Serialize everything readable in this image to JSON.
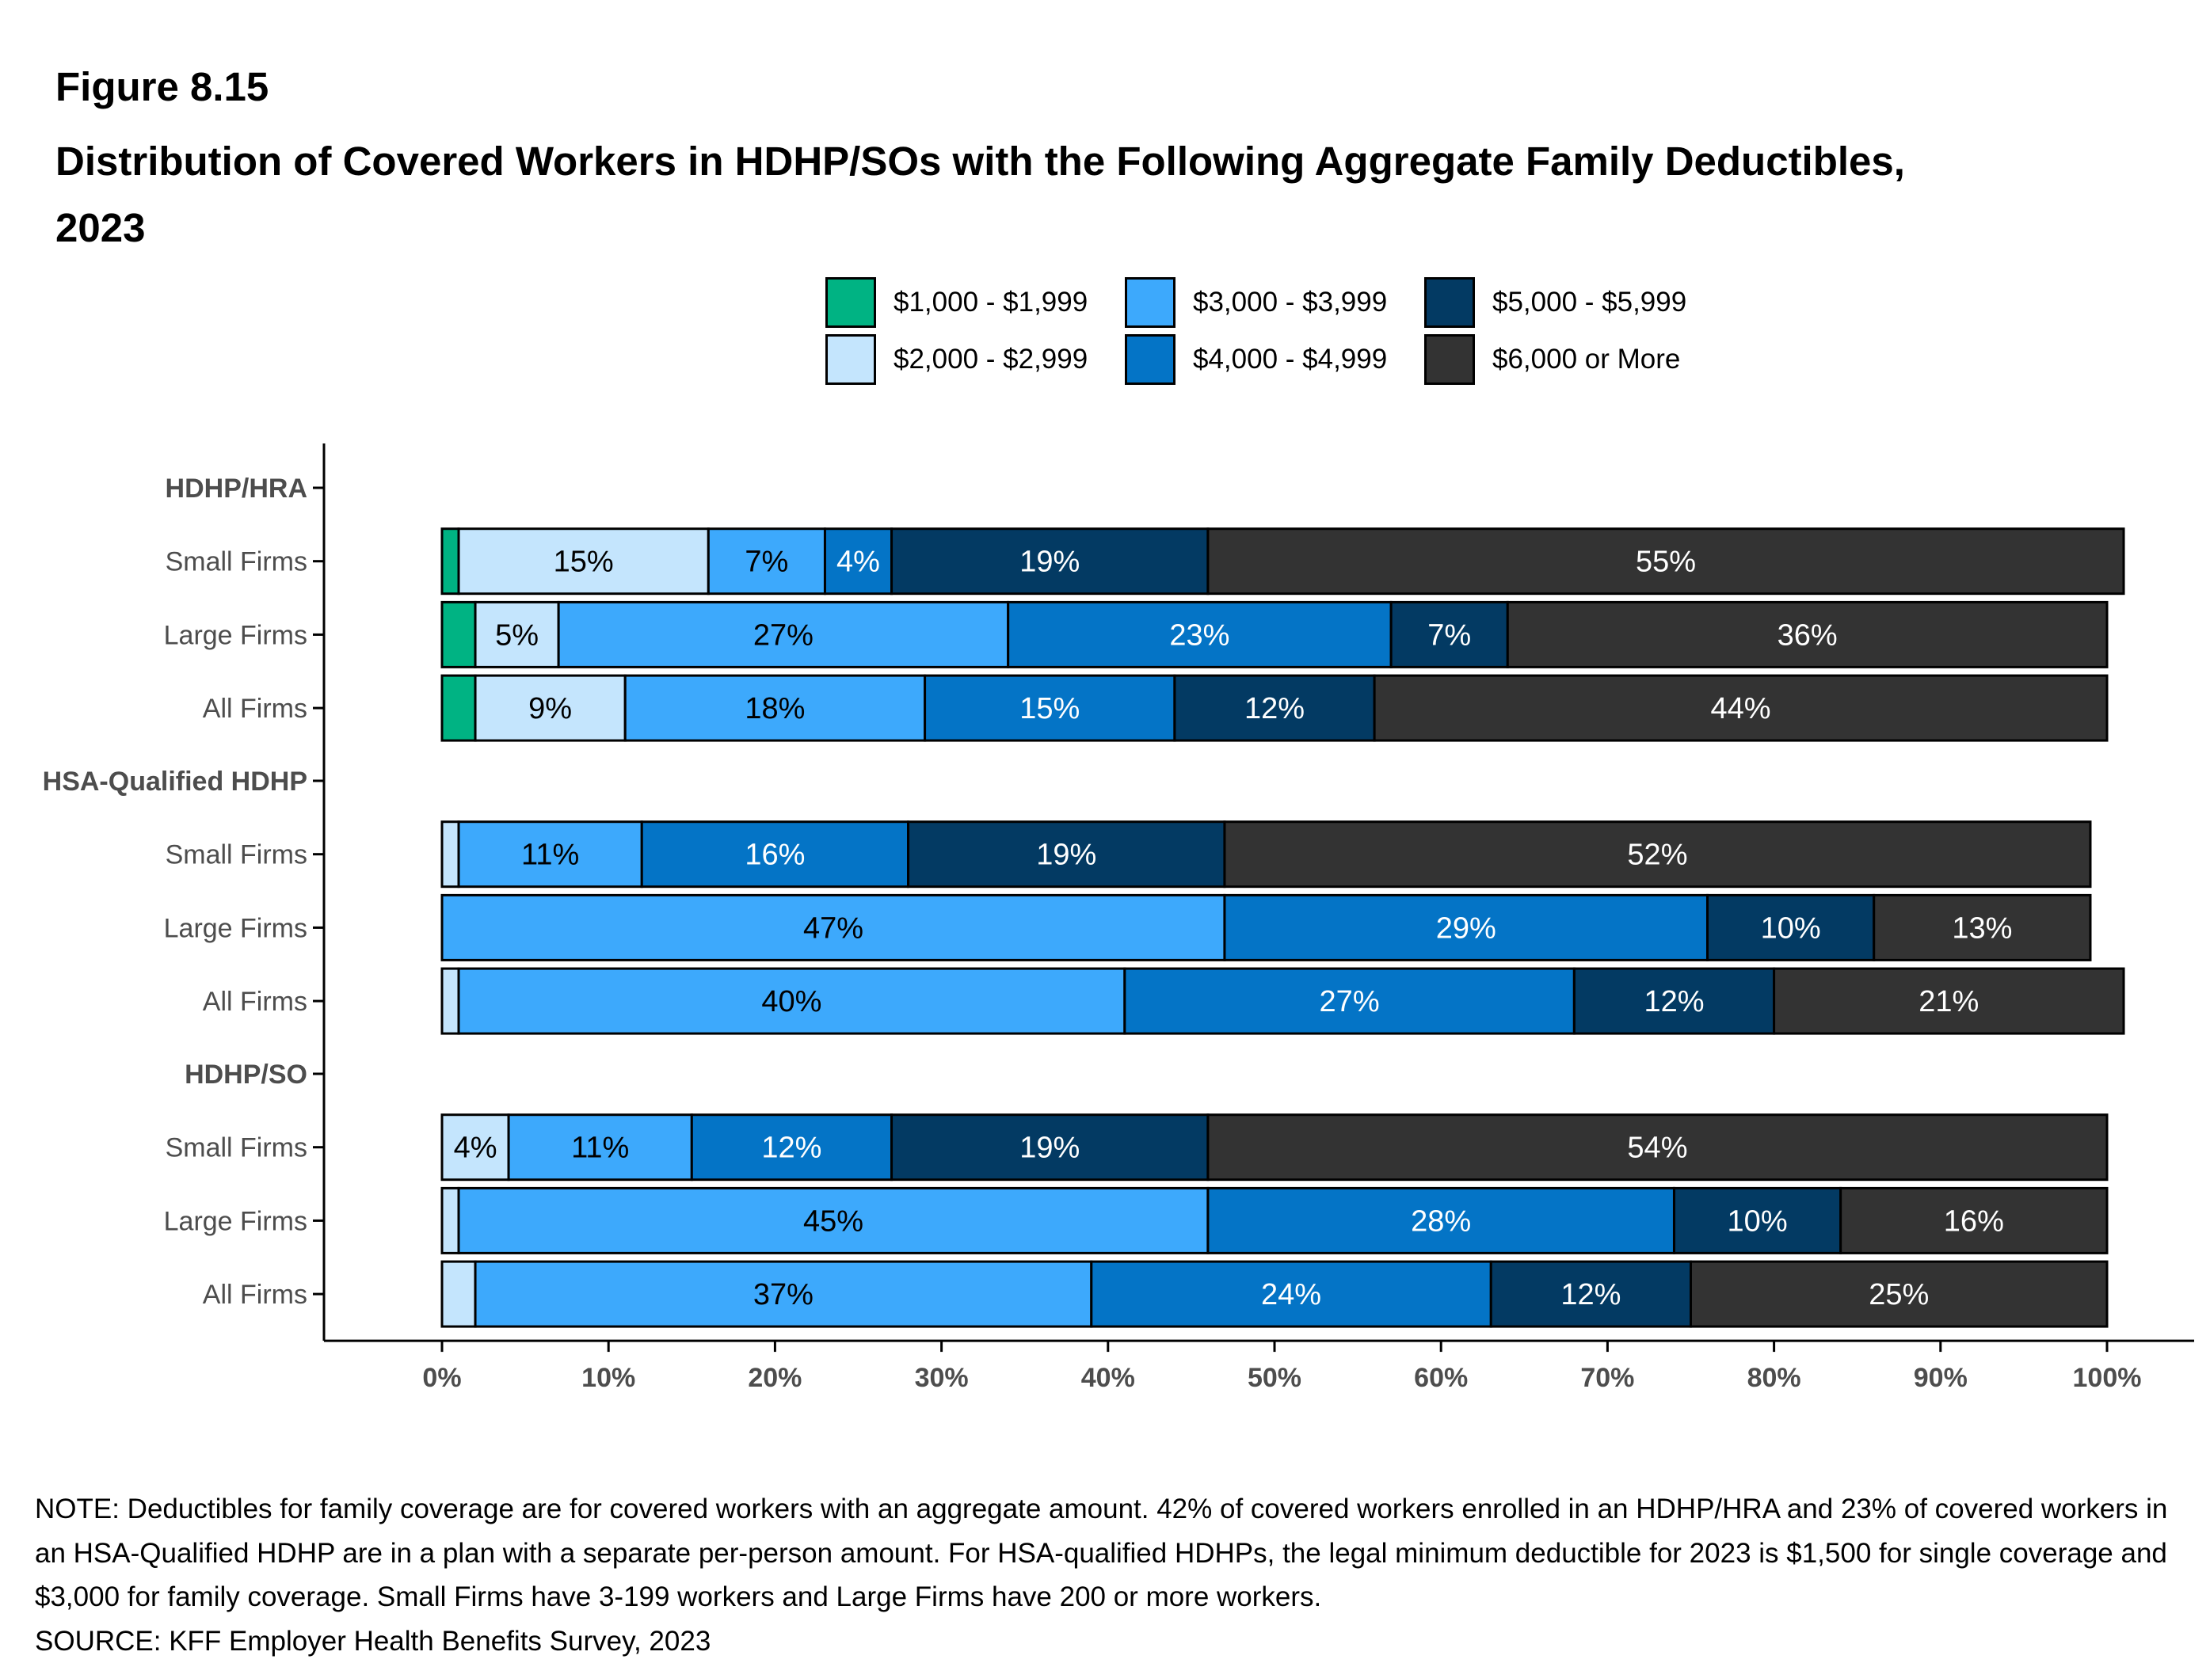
{
  "figure": {
    "number": "Figure 8.15",
    "title": "Distribution of Covered Workers in HDHP/SOs with the Following Aggregate Family Deductibles, 2023"
  },
  "legend": [
    {
      "label": "$1,000 - $1,999",
      "color": "#00B383"
    },
    {
      "label": "$3,000 - $3,999",
      "color": "#3DA9FC"
    },
    {
      "label": "$5,000 - $5,999",
      "color": "#033A63"
    },
    {
      "label": "$2,000 - $2,999",
      "color": "#C4E5FD"
    },
    {
      "label": "$4,000 - $4,999",
      "color": "#0474C6"
    },
    {
      "label": "$6,000 or More",
      "color": "#333333"
    }
  ],
  "chart_data": {
    "type": "bar",
    "orientation": "horizontal",
    "stacked": true,
    "xlim": [
      0,
      100
    ],
    "x_ticks": [
      "0%",
      "10%",
      "20%",
      "30%",
      "40%",
      "50%",
      "60%",
      "70%",
      "80%",
      "90%",
      "100%"
    ],
    "legend_position": "top",
    "grid": false,
    "series": [
      {
        "name": "$1,000 - $1,999",
        "color": "#00B383",
        "label_color": "#000000"
      },
      {
        "name": "$2,000 - $2,999",
        "color": "#C4E5FD",
        "label_color": "#000000"
      },
      {
        "name": "$3,000 - $3,999",
        "color": "#3DA9FC",
        "label_color": "#000000"
      },
      {
        "name": "$4,000 - $4,999",
        "color": "#0474C6",
        "label_color": "#FFFFFF"
      },
      {
        "name": "$5,000 - $5,999",
        "color": "#033A63",
        "label_color": "#FFFFFF"
      },
      {
        "name": "$6,000 or More",
        "color": "#333333",
        "label_color": "#FFFFFF"
      }
    ],
    "groups": [
      {
        "label": "HDHP/HRA",
        "rows": [
          {
            "label": "Small Firms",
            "values": [
              1,
              15,
              7,
              4,
              19,
              55
            ],
            "labels": [
              "",
              "15%",
              "7%",
              "4%",
              "19%",
              "55%"
            ]
          },
          {
            "label": "Large Firms",
            "values": [
              2,
              5,
              27,
              23,
              7,
              36
            ],
            "labels": [
              "",
              "5%",
              "27%",
              "23%",
              "7%",
              "36%"
            ]
          },
          {
            "label": "All Firms",
            "values": [
              2,
              9,
              18,
              15,
              12,
              44
            ],
            "labels": [
              "",
              "9%",
              "18%",
              "15%",
              "12%",
              "44%"
            ]
          }
        ]
      },
      {
        "label": "HSA-Qualified HDHP",
        "rows": [
          {
            "label": "Small Firms",
            "values": [
              0,
              1,
              11,
              16,
              19,
              52
            ],
            "labels": [
              "",
              "",
              "11%",
              "16%",
              "19%",
              "52%"
            ]
          },
          {
            "label": "Large Firms",
            "values": [
              0,
              0,
              47,
              29,
              10,
              13
            ],
            "labels": [
              "",
              "",
              "47%",
              "29%",
              "10%",
              "13%"
            ]
          },
          {
            "label": "All Firms",
            "values": [
              0,
              1,
              40,
              27,
              12,
              21
            ],
            "labels": [
              "",
              "",
              "40%",
              "27%",
              "12%",
              "21%"
            ]
          }
        ]
      },
      {
        "label": "HDHP/SO",
        "rows": [
          {
            "label": "Small Firms",
            "values": [
              0,
              4,
              11,
              12,
              19,
              54
            ],
            "labels": [
              "",
              "4%",
              "11%",
              "12%",
              "19%",
              "54%"
            ]
          },
          {
            "label": "Large Firms",
            "values": [
              0,
              1,
              45,
              28,
              10,
              16
            ],
            "labels": [
              "",
              "",
              "45%",
              "28%",
              "10%",
              "16%"
            ]
          },
          {
            "label": "All Firms",
            "values": [
              0,
              2,
              37,
              24,
              12,
              25
            ],
            "labels": [
              "",
              "",
              "37%",
              "24%",
              "12%",
              "25%"
            ]
          }
        ]
      }
    ]
  },
  "notes": {
    "note": "NOTE: Deductibles for family coverage are for covered workers with an aggregate amount. 42% of covered workers enrolled in an HDHP/HRA and 23% of covered workers in an HSA-Qualified HDHP are in a plan with a separate per-person amount. For HSA-qualified HDHPs, the legal minimum deductible for 2023 is $1,500 for single coverage and $3,000 for family coverage. Small Firms have 3-199 workers and Large Firms have 200 or more workers.",
    "source": "SOURCE: KFF Employer Health Benefits Survey, 2023"
  }
}
